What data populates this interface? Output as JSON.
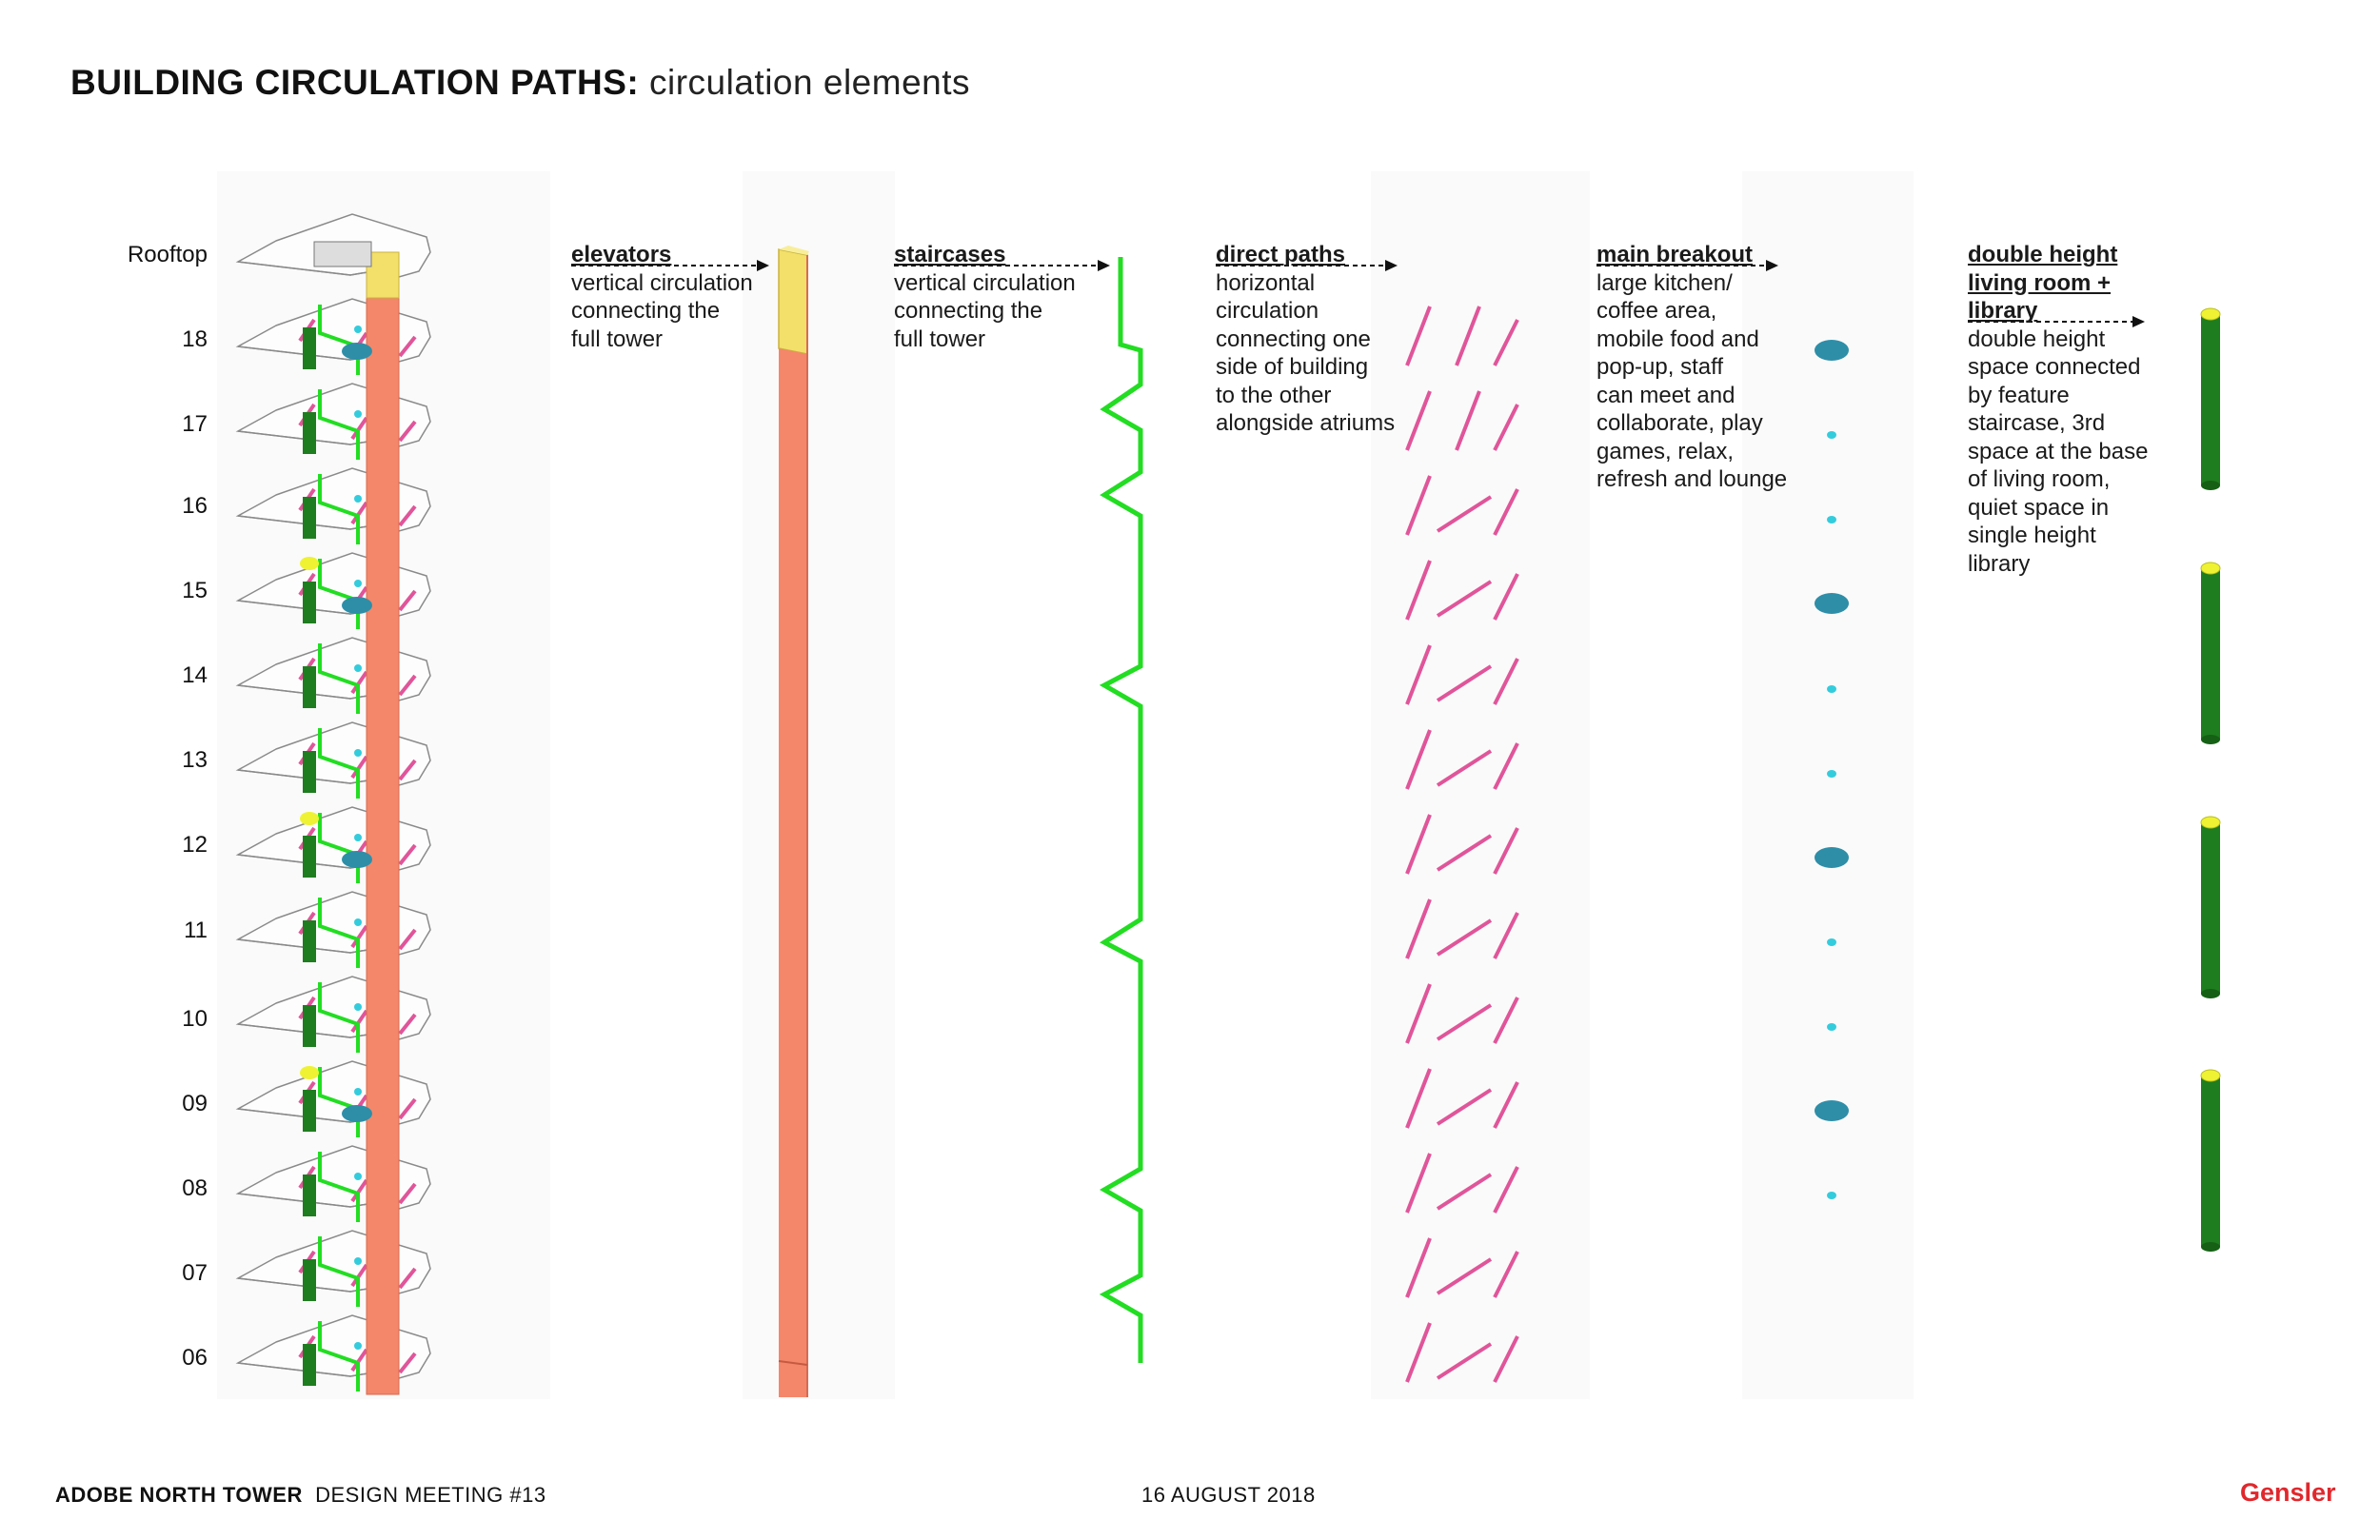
{
  "title": {
    "bold": "BUILDING CIRCULATION PATHS:",
    "sub": "circulation elements"
  },
  "floors": [
    "Rooftop",
    "18",
    "17",
    "16",
    "15",
    "14",
    "13",
    "12",
    "11",
    "10",
    "09",
    "08",
    "07",
    "06"
  ],
  "elements": [
    {
      "head": "elevators",
      "body": "vertical circulation\nconnecting the\nfull tower",
      "color": "#f4876a"
    },
    {
      "head": "staircases",
      "body": "vertical circulation\nconnecting the\nfull tower",
      "color": "#22dd22"
    },
    {
      "head": "direct paths",
      "body": "horizontal\ncirculation\nconnecting one\nside of building\nto the other\nalongside atriums",
      "color": "#e0559a"
    },
    {
      "head": "main breakout",
      "body": "large kitchen/\ncoffee area,\nmobile food and\npop-up, staff\ncan meet and\ncollaborate, play\ngames, relax,\nrefresh and lounge",
      "color": "#2e8ea8"
    },
    {
      "head": "double height\nliving room +\nlibrary",
      "body": "double height\nspace connected\nby feature\nstaircase, 3rd\nspace at the base\nof living room,\nquiet space in\nsingle height\nlibrary",
      "color": "#1e7d1e"
    }
  ],
  "footer": {
    "project": "ADOBE NORTH TOWER",
    "meeting": "DESIGN MEETING #13",
    "date": "16 AUGUST 2018",
    "logo": "Gensler"
  }
}
